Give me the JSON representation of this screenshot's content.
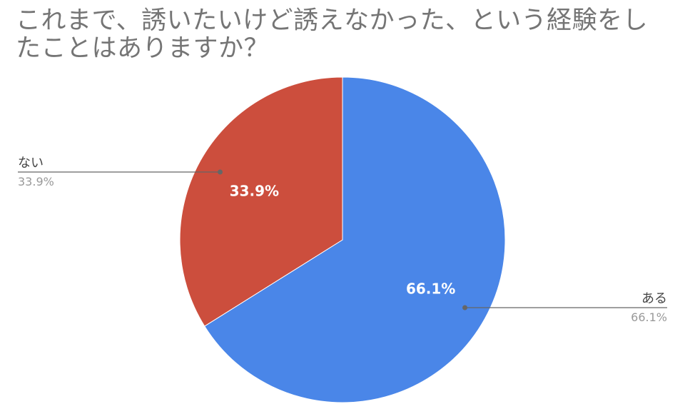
{
  "chart_data": {
    "type": "pie",
    "title": "これまで、誘いたいけど誘えなかった、という経験をしたことはありますか？",
    "slices": [
      {
        "label": "ある",
        "value": 66.1,
        "display": "66.1%",
        "color": "#4a86e8"
      },
      {
        "label": "ない",
        "value": 33.9,
        "display": "33.9%",
        "color": "#cc4e3d"
      }
    ],
    "legend": "callouts"
  }
}
